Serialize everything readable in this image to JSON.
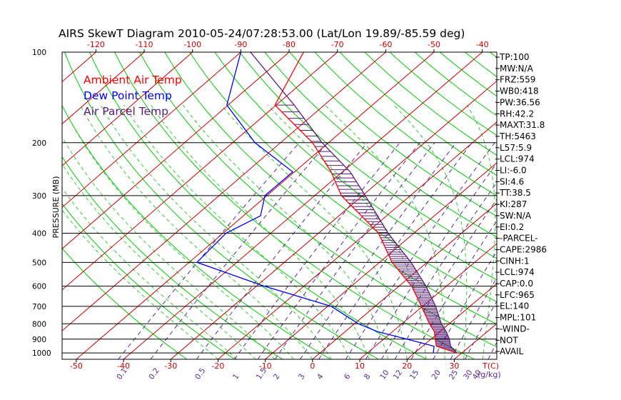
{
  "title": "AIRS SkewT Diagram 2010-05-24/07:28:53.00 (Lat/Lon 19.89/-85.59 deg)",
  "ylabel": "PRESSURE (MB)",
  "colors": {
    "ambient": "#ff0000",
    "dewpoint": "#0000ff",
    "parcel": "#5a1a7a",
    "green": "#00cc00",
    "dashed_green": "#33cc33",
    "mixing": "#5a2a8a",
    "axis_red": "#cc0000"
  },
  "legend": [
    {
      "label": "Ambient Air Temp",
      "color": "#ff0000"
    },
    {
      "label": "Dew Point Temp",
      "color": "#0000ff"
    },
    {
      "label": "Air Parcel Temp",
      "color": "#5a1a7a"
    }
  ],
  "stats": [
    "TP:100",
    "MW:N/A",
    "FRZ:559",
    "WB0:418",
    "PW:36.56",
    "RH:42.2",
    "MAXT:31.8",
    "TH:5463",
    "L57:5.9",
    "LCL:974",
    "LI:-6.0",
    "SI:4.6",
    "TT:38.5",
    "KI:287",
    "SW:N/A",
    "EI:0.2",
    "-PARCEL-",
    "CAPE:2986",
    "CINH:1",
    "LCL:974",
    "CAP:0.0",
    "LFC:965",
    "EL:140",
    "MPL:101",
    "-WIND-",
    "NOT",
    "AVAIL"
  ],
  "chart_data": {
    "type": "line",
    "title": "AIRS SkewT Diagram 2010-05-24/07:28:53.00 (Lat/Lon 19.89/-85.59 deg)",
    "ylabel": "PRESSURE (MB)",
    "y_scale": "log",
    "ylim": [
      1050,
      100
    ],
    "bottom_temp_range": [
      -53,
      39
    ],
    "top_temp_range": [
      -127,
      -37
    ],
    "pressure_ticks": [
      100,
      200,
      300,
      400,
      500,
      600,
      700,
      800,
      900,
      1000
    ],
    "top_ticks": [
      -120,
      -110,
      -100,
      -90,
      -80,
      -70,
      -60,
      -50,
      -40
    ],
    "bottom_ticks": [
      "-50",
      "-40",
      "-30",
      "-20",
      "-10",
      "0",
      "10",
      "20",
      "30"
    ],
    "bottom_unit_label": "T(C)",
    "mixing_ratio_labels": [
      "0.1",
      "0.2",
      "0.5",
      "1",
      "1.5",
      "2",
      "3",
      "4",
      "6",
      "8",
      "10",
      "12",
      "15",
      "20",
      "25",
      "30",
      "40"
    ],
    "mixing_unit_label": "(g/kg)",
    "series": [
      {
        "name": "Ambient Air Temp",
        "pressure": [
          1000,
          950,
          900,
          850,
          800,
          700,
          600,
          500,
          400,
          300,
          250,
          200,
          150,
          100
        ],
        "temp": [
          29,
          23,
          21,
          19,
          16,
          10,
          3,
          -7,
          -17,
          -34,
          -42,
          -53,
          -70,
          -77
        ]
      },
      {
        "name": "Dew Point Temp",
        "pressure": [
          1000,
          950,
          900,
          850,
          800,
          700,
          600,
          500,
          400,
          350,
          300,
          250,
          200,
          150,
          100
        ],
        "temp": [
          24,
          22.5,
          15,
          7,
          1,
          -9,
          -28,
          -48,
          -49,
          -46,
          -50,
          -50,
          -65,
          -80,
          -90
        ]
      },
      {
        "name": "Air Parcel Temp",
        "pressure": [
          1000,
          950,
          900,
          850,
          800,
          700,
          600,
          500,
          400,
          300,
          250,
          200,
          150,
          100
        ],
        "temp": [
          29,
          26,
          24,
          21.5,
          18.5,
          13,
          6,
          -3,
          -15,
          -29,
          -38,
          -51,
          -66,
          -88
        ]
      }
    ]
  }
}
